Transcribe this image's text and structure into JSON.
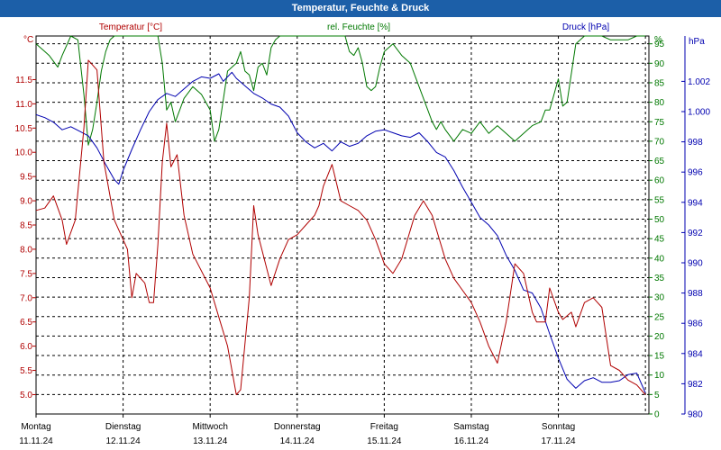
{
  "window": {
    "title": "Temperatur, Feuchte & Druck"
  },
  "chart_data": {
    "type": "line",
    "title": "Temperatur, Feuchte & Druck",
    "colors": {
      "temperature": "#b00000",
      "humidity": "#007800",
      "pressure": "#0000b0"
    },
    "axes": {
      "temperature": {
        "label": "Temperatur [°C]",
        "unit": "°C",
        "range": [
          4.6,
          12.4
        ],
        "ticks": [
          "11.5",
          "11.0",
          "10.5",
          "10.0",
          "9.5",
          "9.0",
          "8.5",
          "8.0",
          "7.5",
          "7.0",
          "6.5",
          "6.0",
          "5.5",
          "5.0"
        ]
      },
      "humidity": {
        "label": "rel. Feuchte [%]",
        "unit": "%",
        "range": [
          0,
          97
        ],
        "ticks": [
          "95",
          "90",
          "85",
          "80",
          "75",
          "70",
          "65",
          "60",
          "55",
          "50",
          "45",
          "40",
          "35",
          "30",
          "25",
          "20",
          "15",
          "10",
          "5",
          "0"
        ]
      },
      "pressure": {
        "label": "Druck [hPa]",
        "unit": "hPa",
        "range": [
          980,
          1005
        ],
        "ticks": [
          "1.002",
          "1.000",
          "998",
          "996",
          "994",
          "992",
          "990",
          "988",
          "986",
          "984",
          "982",
          "980"
        ]
      }
    },
    "x_days": [
      {
        "day": "Montag",
        "date": "11.11.24"
      },
      {
        "day": "Dienstag",
        "date": "12.11.24"
      },
      {
        "day": "Mittwoch",
        "date": "13.11.24"
      },
      {
        "day": "Donnerstag",
        "date": "14.11.24"
      },
      {
        "day": "Freitag",
        "date": "15.11.24"
      },
      {
        "day": "Samstag",
        "date": "16.11.24"
      },
      {
        "day": "Sonntag",
        "date": "17.11.24"
      }
    ],
    "x_range_days": [
      0,
      7.04
    ],
    "series": [
      {
        "name": "Temperatur",
        "axis": "temperature",
        "points": [
          [
            0.0,
            8.8
          ],
          [
            0.1,
            8.85
          ],
          [
            0.2,
            9.1
          ],
          [
            0.3,
            8.6
          ],
          [
            0.35,
            8.1
          ],
          [
            0.45,
            8.6
          ],
          [
            0.55,
            10.5
          ],
          [
            0.6,
            11.9
          ],
          [
            0.7,
            11.7
          ],
          [
            0.78,
            9.8
          ],
          [
            0.9,
            8.6
          ],
          [
            1.0,
            8.2
          ],
          [
            1.05,
            8.0
          ],
          [
            1.1,
            7.0
          ],
          [
            1.15,
            7.5
          ],
          [
            1.25,
            7.3
          ],
          [
            1.3,
            6.9
          ],
          [
            1.35,
            6.9
          ],
          [
            1.4,
            8.1
          ],
          [
            1.45,
            9.8
          ],
          [
            1.5,
            10.6
          ],
          [
            1.55,
            9.7
          ],
          [
            1.62,
            9.95
          ],
          [
            1.7,
            8.7
          ],
          [
            1.8,
            7.9
          ],
          [
            2.0,
            7.2
          ],
          [
            2.1,
            6.6
          ],
          [
            2.2,
            6.0
          ],
          [
            2.3,
            5.0
          ],
          [
            2.35,
            5.1
          ],
          [
            2.45,
            7.0
          ],
          [
            2.5,
            8.9
          ],
          [
            2.55,
            8.3
          ],
          [
            2.65,
            7.6
          ],
          [
            2.7,
            7.25
          ],
          [
            2.8,
            7.8
          ],
          [
            2.9,
            8.2
          ],
          [
            3.0,
            8.3
          ],
          [
            3.1,
            8.5
          ],
          [
            3.2,
            8.7
          ],
          [
            3.25,
            8.9
          ],
          [
            3.3,
            9.3
          ],
          [
            3.4,
            9.75
          ],
          [
            3.5,
            9.0
          ],
          [
            3.6,
            8.9
          ],
          [
            3.7,
            8.8
          ],
          [
            3.8,
            8.6
          ],
          [
            3.9,
            8.2
          ],
          [
            4.0,
            7.7
          ],
          [
            4.1,
            7.5
          ],
          [
            4.2,
            7.8
          ],
          [
            4.35,
            8.7
          ],
          [
            4.45,
            9.0
          ],
          [
            4.55,
            8.7
          ],
          [
            4.7,
            7.8
          ],
          [
            4.8,
            7.4
          ],
          [
            5.0,
            6.9
          ],
          [
            5.1,
            6.5
          ],
          [
            5.2,
            6.0
          ],
          [
            5.3,
            5.65
          ],
          [
            5.4,
            6.5
          ],
          [
            5.5,
            7.7
          ],
          [
            5.6,
            7.5
          ],
          [
            5.7,
            6.7
          ],
          [
            5.75,
            6.5
          ],
          [
            5.85,
            6.5
          ],
          [
            5.9,
            7.2
          ],
          [
            6.0,
            6.7
          ],
          [
            6.05,
            6.55
          ],
          [
            6.15,
            6.7
          ],
          [
            6.2,
            6.4
          ],
          [
            6.3,
            6.9
          ],
          [
            6.4,
            7.0
          ],
          [
            6.5,
            6.8
          ],
          [
            6.6,
            5.6
          ],
          [
            6.7,
            5.5
          ],
          [
            6.8,
            5.3
          ],
          [
            6.9,
            5.2
          ],
          [
            7.0,
            5.0
          ]
        ]
      },
      {
        "name": "rel. Feuchte",
        "axis": "humidity",
        "points": [
          [
            0.0,
            95
          ],
          [
            0.1,
            93
          ],
          [
            0.15,
            92
          ],
          [
            0.25,
            89
          ],
          [
            0.3,
            92
          ],
          [
            0.4,
            97
          ],
          [
            0.48,
            96
          ],
          [
            0.55,
            82
          ],
          [
            0.6,
            69
          ],
          [
            0.65,
            73
          ],
          [
            0.7,
            80
          ],
          [
            0.75,
            88
          ],
          [
            0.8,
            93
          ],
          [
            0.85,
            96
          ],
          [
            0.9,
            97
          ],
          [
            1.0,
            97
          ],
          [
            1.1,
            97
          ],
          [
            1.2,
            97
          ],
          [
            1.3,
            97
          ],
          [
            1.4,
            97
          ],
          [
            1.45,
            90
          ],
          [
            1.5,
            78
          ],
          [
            1.55,
            80
          ],
          [
            1.6,
            75
          ],
          [
            1.65,
            78
          ],
          [
            1.7,
            81
          ],
          [
            1.8,
            84
          ],
          [
            1.9,
            82
          ],
          [
            2.0,
            78
          ],
          [
            2.05,
            70
          ],
          [
            2.1,
            73
          ],
          [
            2.2,
            88
          ],
          [
            2.3,
            90
          ],
          [
            2.35,
            93
          ],
          [
            2.4,
            88
          ],
          [
            2.45,
            87
          ],
          [
            2.5,
            83
          ],
          [
            2.55,
            89
          ],
          [
            2.6,
            90
          ],
          [
            2.65,
            87
          ],
          [
            2.7,
            94
          ],
          [
            2.75,
            96
          ],
          [
            2.8,
            97
          ],
          [
            3.0,
            97
          ],
          [
            3.2,
            97
          ],
          [
            3.4,
            97
          ],
          [
            3.55,
            97
          ],
          [
            3.6,
            93
          ],
          [
            3.65,
            92
          ],
          [
            3.7,
            94
          ],
          [
            3.75,
            90
          ],
          [
            3.8,
            84
          ],
          [
            3.85,
            83
          ],
          [
            3.9,
            84
          ],
          [
            3.95,
            89
          ],
          [
            4.0,
            93
          ],
          [
            4.1,
            95
          ],
          [
            4.2,
            92
          ],
          [
            4.3,
            90
          ],
          [
            4.4,
            84
          ],
          [
            4.5,
            78
          ],
          [
            4.55,
            75
          ],
          [
            4.6,
            73
          ],
          [
            4.65,
            75
          ],
          [
            4.7,
            73
          ],
          [
            4.8,
            70
          ],
          [
            4.9,
            73
          ],
          [
            5.0,
            72
          ],
          [
            5.1,
            75
          ],
          [
            5.2,
            72
          ],
          [
            5.3,
            74
          ],
          [
            5.4,
            72
          ],
          [
            5.5,
            70
          ],
          [
            5.6,
            72
          ],
          [
            5.7,
            74
          ],
          [
            5.8,
            75
          ],
          [
            5.85,
            78
          ],
          [
            5.9,
            78
          ],
          [
            6.0,
            86
          ],
          [
            6.05,
            79
          ],
          [
            6.1,
            80
          ],
          [
            6.2,
            95
          ],
          [
            6.3,
            97
          ],
          [
            6.5,
            97
          ],
          [
            6.6,
            96
          ],
          [
            6.7,
            96
          ],
          [
            6.8,
            96
          ],
          [
            6.9,
            97
          ],
          [
            7.0,
            97
          ]
        ]
      },
      {
        "name": "Druck",
        "axis": "pressure",
        "points": [
          [
            0.0,
            999.8
          ],
          [
            0.1,
            999.6
          ],
          [
            0.2,
            999.3
          ],
          [
            0.3,
            998.8
          ],
          [
            0.4,
            999.0
          ],
          [
            0.5,
            998.7
          ],
          [
            0.6,
            998.4
          ],
          [
            0.7,
            997.6
          ],
          [
            0.8,
            996.5
          ],
          [
            0.9,
            995.5
          ],
          [
            0.95,
            995.2
          ],
          [
            1.0,
            996.1
          ],
          [
            1.1,
            997.5
          ],
          [
            1.2,
            998.8
          ],
          [
            1.3,
            1000.0
          ],
          [
            1.4,
            1000.8
          ],
          [
            1.5,
            1001.2
          ],
          [
            1.6,
            1001.0
          ],
          [
            1.7,
            1001.5
          ],
          [
            1.8,
            1002.0
          ],
          [
            1.9,
            1002.3
          ],
          [
            2.0,
            1002.2
          ],
          [
            2.1,
            1002.5
          ],
          [
            2.15,
            1002.0
          ],
          [
            2.25,
            1002.6
          ],
          [
            2.3,
            1002.2
          ],
          [
            2.4,
            1001.7
          ],
          [
            2.5,
            1001.2
          ],
          [
            2.6,
            1000.9
          ],
          [
            2.7,
            1000.5
          ],
          [
            2.8,
            1000.3
          ],
          [
            2.9,
            999.7
          ],
          [
            3.0,
            998.6
          ],
          [
            3.1,
            998.0
          ],
          [
            3.2,
            997.6
          ],
          [
            3.3,
            997.9
          ],
          [
            3.4,
            997.4
          ],
          [
            3.5,
            998.0
          ],
          [
            3.6,
            997.7
          ],
          [
            3.7,
            997.9
          ],
          [
            3.8,
            998.4
          ],
          [
            3.9,
            998.7
          ],
          [
            4.0,
            998.8
          ],
          [
            4.1,
            998.6
          ],
          [
            4.2,
            998.4
          ],
          [
            4.3,
            998.3
          ],
          [
            4.4,
            998.6
          ],
          [
            4.5,
            998.0
          ],
          [
            4.6,
            997.3
          ],
          [
            4.7,
            997.0
          ],
          [
            4.8,
            996.1
          ],
          [
            4.9,
            995.0
          ],
          [
            5.0,
            994.0
          ],
          [
            5.1,
            993.0
          ],
          [
            5.2,
            992.5
          ],
          [
            5.3,
            991.8
          ],
          [
            5.4,
            990.5
          ],
          [
            5.5,
            989.5
          ],
          [
            5.6,
            988.2
          ],
          [
            5.7,
            988.0
          ],
          [
            5.8,
            987.0
          ],
          [
            5.9,
            985.3
          ],
          [
            6.0,
            983.7
          ],
          [
            6.1,
            982.3
          ],
          [
            6.2,
            981.7
          ],
          [
            6.3,
            982.2
          ],
          [
            6.4,
            982.4
          ],
          [
            6.5,
            982.1
          ],
          [
            6.6,
            982.1
          ],
          [
            6.7,
            982.2
          ],
          [
            6.8,
            982.6
          ],
          [
            6.9,
            982.7
          ],
          [
            7.0,
            981.4
          ]
        ]
      }
    ]
  }
}
